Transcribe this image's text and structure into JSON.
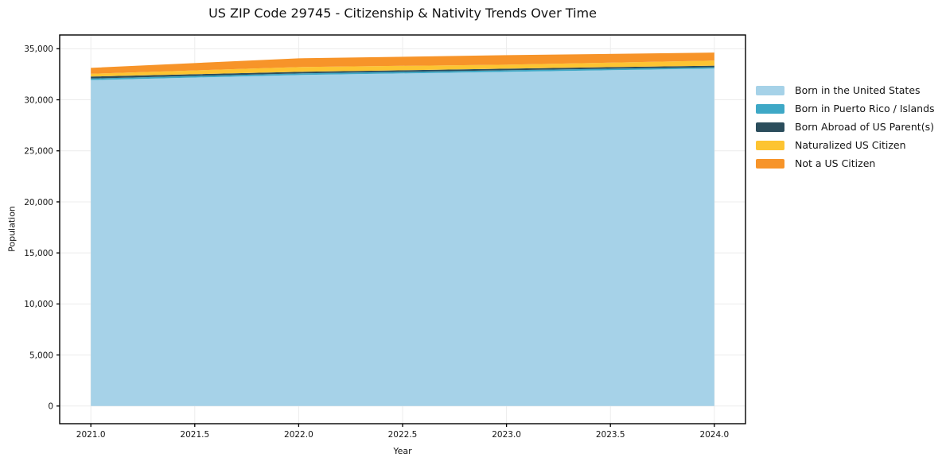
{
  "chart_data": {
    "type": "area",
    "stacked": true,
    "title": "US ZIP Code 29745 - Citizenship & Nativity Trends Over Time",
    "xlabel": "Year",
    "ylabel": "Population",
    "x": [
      2021,
      2022,
      2023,
      2024
    ],
    "series": [
      {
        "name": "Born in the United States",
        "color": "#a6d2e8",
        "values": [
          31930,
          32430,
          32740,
          33060
        ]
      },
      {
        "name": "Born in Puerto Rico / Islands",
        "color": "#3ea8c6",
        "values": [
          155,
          155,
          155,
          130
        ]
      },
      {
        "name": "Born Abroad of US Parent(s)",
        "color": "#2b4d5c",
        "values": [
          195,
          155,
          155,
          155
        ]
      },
      {
        "name": "Naturalized US Citizen",
        "color": "#fdc432",
        "values": [
          270,
          470,
          390,
          500
        ]
      },
      {
        "name": "Not a US Citizen",
        "color": "#f79429",
        "values": [
          580,
          855,
          930,
          780
        ]
      }
    ],
    "xlim": [
      2020.85,
      2024.15
    ],
    "ylim": [
      -1730,
      36350
    ],
    "xticks": {
      "values": [
        2021.0,
        2021.5,
        2022.0,
        2022.5,
        2023.0,
        2023.5,
        2024.0
      ],
      "labels": [
        "2021.0",
        "2021.5",
        "2022.0",
        "2022.5",
        "2023.0",
        "2023.5",
        "2024.0"
      ]
    },
    "yticks": {
      "values": [
        0,
        5000,
        10000,
        15000,
        20000,
        25000,
        30000,
        35000
      ],
      "labels": [
        "0",
        "5,000",
        "10,000",
        "15,000",
        "20,000",
        "25,000",
        "30,000",
        "35,000"
      ]
    },
    "grid": "on",
    "grid_color": "#ececec",
    "axis_color": "#000000",
    "text_color": "#141414",
    "legend_position": "right-outside"
  }
}
